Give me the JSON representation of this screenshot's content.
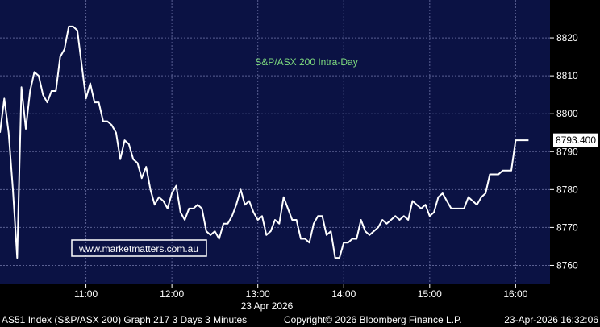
{
  "chart_data": {
    "type": "line",
    "title": "S&P/ASX 200 Intra-Day",
    "watermark": "www.marketmatters.com.au",
    "date_label": "23 Apr 2026",
    "last_value_label": "8793.400",
    "ylim": [
      8755,
      8830
    ],
    "y_ticks": [
      8760,
      8770,
      8780,
      8790,
      8800,
      8810,
      8820
    ],
    "x_ticks": [
      "11:00",
      "12:00",
      "13:00",
      "14:00",
      "15:00",
      "16:00"
    ],
    "grid": true,
    "colors": {
      "background": "#0b1244",
      "line": "#ffffff",
      "grid": "#5a6092",
      "title": "#7fdc7f",
      "watermark_border": "#ffffff",
      "watermark_text": "#ffffff"
    },
    "series": [
      {
        "values": [
          [
            "10:00",
            8795
          ],
          [
            "10:03",
            8804
          ],
          [
            "10:06",
            8795
          ],
          [
            "10:09",
            8780
          ],
          [
            "10:12",
            8762
          ],
          [
            "10:15",
            8807
          ],
          [
            "10:18",
            8796
          ],
          [
            "10:21",
            8806
          ],
          [
            "10:24",
            8811
          ],
          [
            "10:27",
            8810
          ],
          [
            "10:30",
            8805
          ],
          [
            "10:33",
            8803
          ],
          [
            "10:36",
            8806
          ],
          [
            "10:39",
            8806
          ],
          [
            "10:42",
            8815
          ],
          [
            "10:45",
            8817
          ],
          [
            "10:48",
            8823
          ],
          [
            "10:51",
            8823
          ],
          [
            "10:54",
            8822
          ],
          [
            "10:57",
            8813
          ],
          [
            "11:00",
            8804
          ],
          [
            "11:03",
            8808
          ],
          [
            "11:06",
            8803
          ],
          [
            "11:09",
            8803
          ],
          [
            "11:12",
            8798
          ],
          [
            "11:15",
            8798
          ],
          [
            "11:18",
            8797
          ],
          [
            "11:21",
            8795
          ],
          [
            "11:24",
            8788
          ],
          [
            "11:27",
            8793
          ],
          [
            "11:30",
            8792
          ],
          [
            "11:33",
            8788
          ],
          [
            "11:36",
            8787
          ],
          [
            "11:39",
            8783
          ],
          [
            "11:42",
            8786
          ],
          [
            "11:45",
            8780
          ],
          [
            "11:48",
            8776
          ],
          [
            "11:51",
            8778
          ],
          [
            "11:54",
            8777
          ],
          [
            "11:57",
            8775
          ],
          [
            "12:00",
            8779
          ],
          [
            "12:03",
            8781
          ],
          [
            "12:06",
            8774
          ],
          [
            "12:09",
            8772
          ],
          [
            "12:12",
            8775
          ],
          [
            "12:15",
            8775
          ],
          [
            "12:18",
            8776
          ],
          [
            "12:21",
            8775
          ],
          [
            "12:24",
            8769
          ],
          [
            "12:27",
            8768
          ],
          [
            "12:30",
            8769
          ],
          [
            "12:33",
            8767
          ],
          [
            "12:36",
            8771
          ],
          [
            "12:39",
            8771
          ],
          [
            "12:42",
            8773
          ],
          [
            "12:45",
            8776
          ],
          [
            "12:48",
            8780
          ],
          [
            "12:51",
            8776
          ],
          [
            "12:54",
            8777
          ],
          [
            "12:57",
            8774
          ],
          [
            "13:00",
            8772
          ],
          [
            "13:03",
            8773
          ],
          [
            "13:06",
            8768
          ],
          [
            "13:09",
            8769
          ],
          [
            "13:12",
            8772
          ],
          [
            "13:15",
            8771
          ],
          [
            "13:18",
            8778
          ],
          [
            "13:21",
            8775
          ],
          [
            "13:24",
            8772
          ],
          [
            "13:27",
            8772
          ],
          [
            "13:30",
            8767
          ],
          [
            "13:33",
            8767
          ],
          [
            "13:36",
            8766
          ],
          [
            "13:39",
            8771
          ],
          [
            "13:42",
            8773
          ],
          [
            "13:45",
            8773
          ],
          [
            "13:48",
            8768
          ],
          [
            "13:51",
            8769
          ],
          [
            "13:54",
            8762
          ],
          [
            "13:57",
            8762
          ],
          [
            "14:00",
            8766
          ],
          [
            "14:03",
            8766
          ],
          [
            "14:06",
            8767
          ],
          [
            "14:09",
            8767
          ],
          [
            "14:12",
            8772
          ],
          [
            "14:15",
            8769
          ],
          [
            "14:18",
            8768
          ],
          [
            "14:21",
            8769
          ],
          [
            "14:24",
            8770
          ],
          [
            "14:27",
            8772
          ],
          [
            "14:30",
            8771
          ],
          [
            "14:33",
            8772
          ],
          [
            "14:36",
            8773
          ],
          [
            "14:39",
            8772
          ],
          [
            "14:42",
            8773
          ],
          [
            "14:45",
            8772
          ],
          [
            "14:48",
            8777
          ],
          [
            "14:51",
            8776
          ],
          [
            "14:54",
            8775
          ],
          [
            "14:57",
            8776
          ],
          [
            "15:00",
            8773
          ],
          [
            "15:03",
            8774
          ],
          [
            "15:06",
            8778
          ],
          [
            "15:09",
            8779
          ],
          [
            "15:12",
            8777
          ],
          [
            "15:15",
            8775
          ],
          [
            "15:18",
            8775
          ],
          [
            "15:21",
            8775
          ],
          [
            "15:24",
            8775
          ],
          [
            "15:27",
            8778
          ],
          [
            "15:30",
            8777
          ],
          [
            "15:33",
            8776
          ],
          [
            "15:36",
            8778
          ],
          [
            "15:39",
            8779
          ],
          [
            "15:42",
            8784
          ],
          [
            "15:45",
            8784
          ],
          [
            "15:48",
            8784
          ],
          [
            "15:51",
            8785
          ],
          [
            "15:54",
            8785
          ],
          [
            "15:57",
            8785
          ],
          [
            "16:00",
            8793
          ],
          [
            "16:03",
            8793
          ],
          [
            "16:06",
            8793
          ],
          [
            "16:09",
            8793
          ]
        ]
      }
    ]
  },
  "footer": {
    "left": "AS51 Index (S&P/ASX 200) Graph 217 3 Days 3 Minutes",
    "center": "Copyright© 2026 Bloomberg Finance L.P.",
    "right": "23-Apr-2026 16:32:06"
  }
}
